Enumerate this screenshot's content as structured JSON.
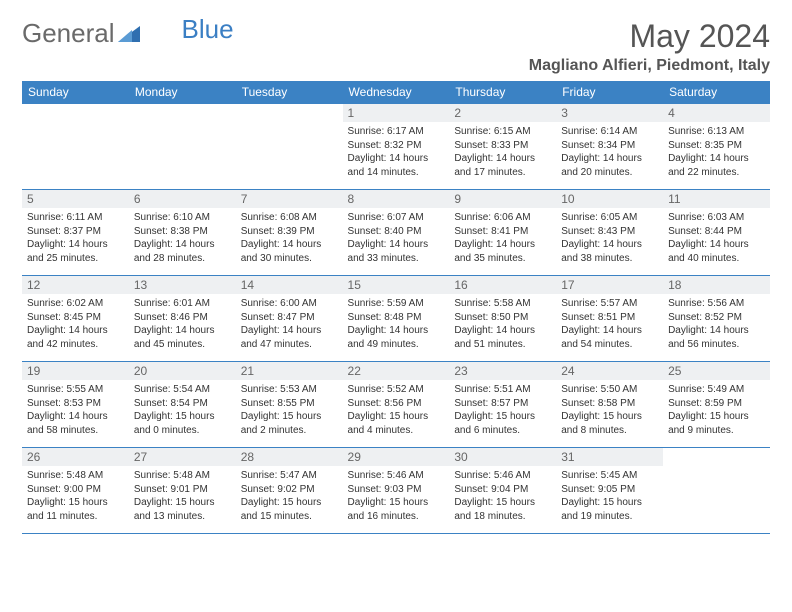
{
  "brand": {
    "part1": "General",
    "part2": "Blue"
  },
  "title": "May 2024",
  "location": "Magliano Alfieri, Piedmont, Italy",
  "colors": {
    "header_bg": "#3b82c4",
    "header_text": "#ffffff",
    "daynum_bg": "#eef0f2",
    "border": "#3b82c4",
    "logo_gray": "#6a6a6a",
    "logo_blue": "#3b7fc4"
  },
  "weekdays": [
    "Sunday",
    "Monday",
    "Tuesday",
    "Wednesday",
    "Thursday",
    "Friday",
    "Saturday"
  ],
  "weeks": [
    [
      null,
      null,
      null,
      {
        "n": "1",
        "sr": "6:17 AM",
        "ss": "8:32 PM",
        "dl": "14 hours and 14 minutes."
      },
      {
        "n": "2",
        "sr": "6:15 AM",
        "ss": "8:33 PM",
        "dl": "14 hours and 17 minutes."
      },
      {
        "n": "3",
        "sr": "6:14 AM",
        "ss": "8:34 PM",
        "dl": "14 hours and 20 minutes."
      },
      {
        "n": "4",
        "sr": "6:13 AM",
        "ss": "8:35 PM",
        "dl": "14 hours and 22 minutes."
      }
    ],
    [
      {
        "n": "5",
        "sr": "6:11 AM",
        "ss": "8:37 PM",
        "dl": "14 hours and 25 minutes."
      },
      {
        "n": "6",
        "sr": "6:10 AM",
        "ss": "8:38 PM",
        "dl": "14 hours and 28 minutes."
      },
      {
        "n": "7",
        "sr": "6:08 AM",
        "ss": "8:39 PM",
        "dl": "14 hours and 30 minutes."
      },
      {
        "n": "8",
        "sr": "6:07 AM",
        "ss": "8:40 PM",
        "dl": "14 hours and 33 minutes."
      },
      {
        "n": "9",
        "sr": "6:06 AM",
        "ss": "8:41 PM",
        "dl": "14 hours and 35 minutes."
      },
      {
        "n": "10",
        "sr": "6:05 AM",
        "ss": "8:43 PM",
        "dl": "14 hours and 38 minutes."
      },
      {
        "n": "11",
        "sr": "6:03 AM",
        "ss": "8:44 PM",
        "dl": "14 hours and 40 minutes."
      }
    ],
    [
      {
        "n": "12",
        "sr": "6:02 AM",
        "ss": "8:45 PM",
        "dl": "14 hours and 42 minutes."
      },
      {
        "n": "13",
        "sr": "6:01 AM",
        "ss": "8:46 PM",
        "dl": "14 hours and 45 minutes."
      },
      {
        "n": "14",
        "sr": "6:00 AM",
        "ss": "8:47 PM",
        "dl": "14 hours and 47 minutes."
      },
      {
        "n": "15",
        "sr": "5:59 AM",
        "ss": "8:48 PM",
        "dl": "14 hours and 49 minutes."
      },
      {
        "n": "16",
        "sr": "5:58 AM",
        "ss": "8:50 PM",
        "dl": "14 hours and 51 minutes."
      },
      {
        "n": "17",
        "sr": "5:57 AM",
        "ss": "8:51 PM",
        "dl": "14 hours and 54 minutes."
      },
      {
        "n": "18",
        "sr": "5:56 AM",
        "ss": "8:52 PM",
        "dl": "14 hours and 56 minutes."
      }
    ],
    [
      {
        "n": "19",
        "sr": "5:55 AM",
        "ss": "8:53 PM",
        "dl": "14 hours and 58 minutes."
      },
      {
        "n": "20",
        "sr": "5:54 AM",
        "ss": "8:54 PM",
        "dl": "15 hours and 0 minutes."
      },
      {
        "n": "21",
        "sr": "5:53 AM",
        "ss": "8:55 PM",
        "dl": "15 hours and 2 minutes."
      },
      {
        "n": "22",
        "sr": "5:52 AM",
        "ss": "8:56 PM",
        "dl": "15 hours and 4 minutes."
      },
      {
        "n": "23",
        "sr": "5:51 AM",
        "ss": "8:57 PM",
        "dl": "15 hours and 6 minutes."
      },
      {
        "n": "24",
        "sr": "5:50 AM",
        "ss": "8:58 PM",
        "dl": "15 hours and 8 minutes."
      },
      {
        "n": "25",
        "sr": "5:49 AM",
        "ss": "8:59 PM",
        "dl": "15 hours and 9 minutes."
      }
    ],
    [
      {
        "n": "26",
        "sr": "5:48 AM",
        "ss": "9:00 PM",
        "dl": "15 hours and 11 minutes."
      },
      {
        "n": "27",
        "sr": "5:48 AM",
        "ss": "9:01 PM",
        "dl": "15 hours and 13 minutes."
      },
      {
        "n": "28",
        "sr": "5:47 AM",
        "ss": "9:02 PM",
        "dl": "15 hours and 15 minutes."
      },
      {
        "n": "29",
        "sr": "5:46 AM",
        "ss": "9:03 PM",
        "dl": "15 hours and 16 minutes."
      },
      {
        "n": "30",
        "sr": "5:46 AM",
        "ss": "9:04 PM",
        "dl": "15 hours and 18 minutes."
      },
      {
        "n": "31",
        "sr": "5:45 AM",
        "ss": "9:05 PM",
        "dl": "15 hours and 19 minutes."
      },
      null
    ]
  ],
  "labels": {
    "sunrise": "Sunrise:",
    "sunset": "Sunset:",
    "daylight": "Daylight:"
  }
}
